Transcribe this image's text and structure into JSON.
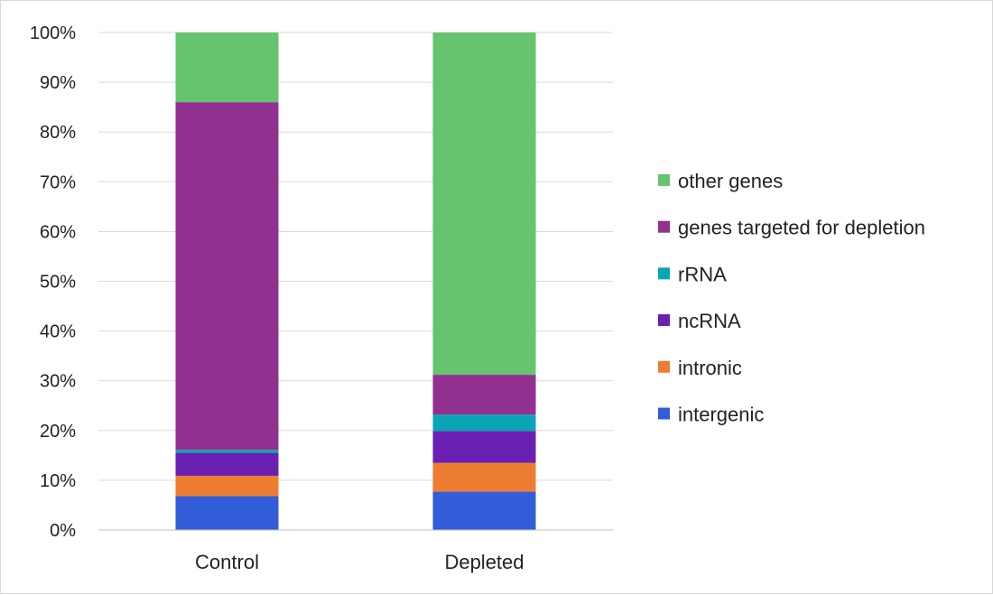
{
  "chart_data": {
    "type": "bar",
    "stacked": true,
    "normalized": true,
    "categories": [
      "Control",
      "Depleted"
    ],
    "y_ticks": [
      "0%",
      "10%",
      "20%",
      "30%",
      "40%",
      "50%",
      "60%",
      "70%",
      "80%",
      "90%",
      "100%"
    ],
    "ylim": [
      0,
      100
    ],
    "grid": true,
    "legend_position": "right",
    "series": [
      {
        "name": "intergenic",
        "color": "#335CD9",
        "values": [
          6.8,
          7.7
        ]
      },
      {
        "name": "intronic",
        "color": "#ED7D31",
        "values": [
          4.1,
          5.8
        ]
      },
      {
        "name": "ncRNA",
        "color": "#6A1FB3",
        "values": [
          4.6,
          6.4
        ]
      },
      {
        "name": "rRNA",
        "color": "#0AA5B5",
        "values": [
          0.6,
          3.3
        ]
      },
      {
        "name": "genes targeted for depletion",
        "color": "#92308F",
        "values": [
          69.9,
          8.0
        ]
      },
      {
        "name": "other genes",
        "color": "#66C36E",
        "values": [
          14.0,
          68.8
        ]
      }
    ]
  }
}
